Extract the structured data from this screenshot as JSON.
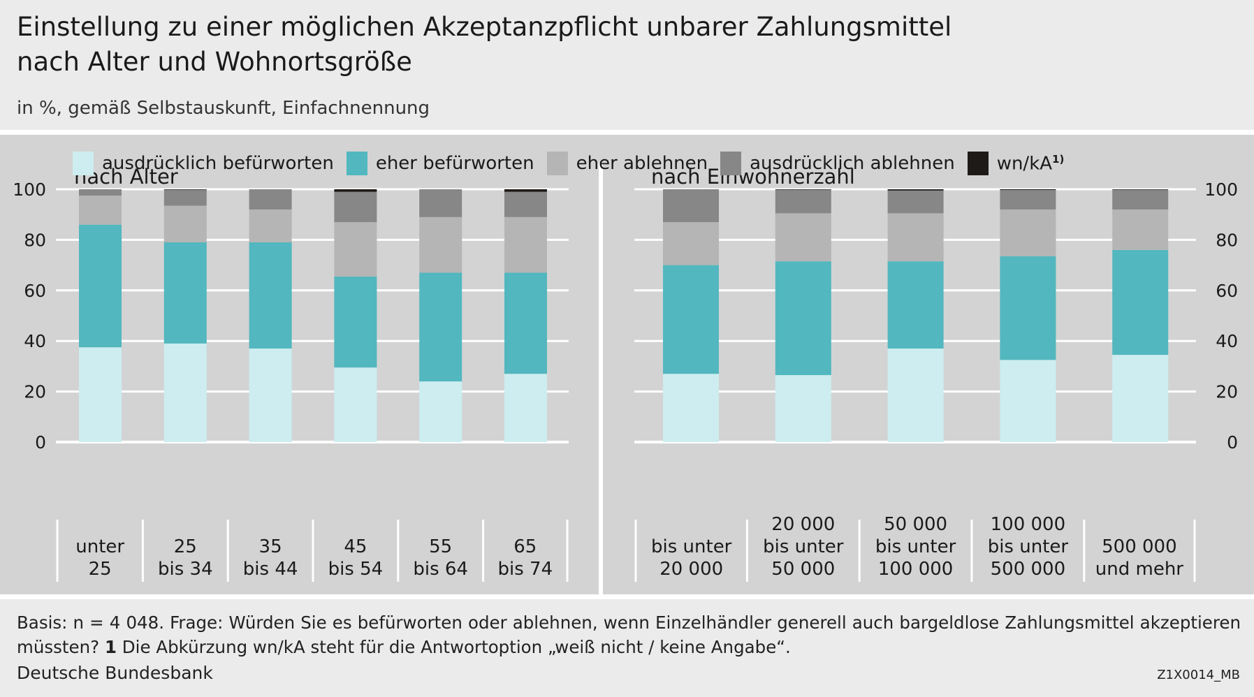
{
  "title_line1": "Einstellung zu einer möglichen Akzeptanzpflicht unbarer Zahlungsmittel",
  "title_line2": "nach Alter und Wohnortsgröße",
  "subtitle": "in %, gemäß Selbstauskunft, Einfachnennung",
  "legend": [
    {
      "label": "ausdrücklich befürworten",
      "color": "#cdedf0"
    },
    {
      "label": "eher befürworten",
      "color": "#52b7bf"
    },
    {
      "label": "eher ablehnen",
      "color": "#b5b5b5"
    },
    {
      "label": "ausdrücklich ablehnen",
      "color": "#878787"
    },
    {
      "label": "wn/kA",
      "sup": "1)",
      "color": "#1d1a18"
    }
  ],
  "chart_data": [
    {
      "type": "bar",
      "stacked": true,
      "title": "nach Alter",
      "ylim": [
        0,
        100
      ],
      "yticks": [
        0,
        20,
        40,
        60,
        80,
        100
      ],
      "categories": [
        [
          "unter",
          "25"
        ],
        [
          "25",
          "bis 34"
        ],
        [
          "35",
          "bis 44"
        ],
        [
          "45",
          "bis 54"
        ],
        [
          "55",
          "bis 64"
        ],
        [
          "65",
          "bis 74"
        ]
      ],
      "series": [
        {
          "name": "ausdrücklich befürworten",
          "values": [
            37.5,
            39,
            37,
            29.5,
            24,
            27
          ]
        },
        {
          "name": "eher befürworten",
          "values": [
            48.5,
            40,
            42,
            36,
            43,
            40
          ]
        },
        {
          "name": "eher ablehnen",
          "values": [
            11.5,
            14.5,
            13,
            21.5,
            22,
            22
          ]
        },
        {
          "name": "ausdrücklich ablehnen",
          "values": [
            2.5,
            6.3,
            8,
            12,
            11,
            10
          ]
        },
        {
          "name": "wn/kA",
          "values": [
            0,
            0.2,
            0,
            1,
            0,
            1
          ]
        }
      ]
    },
    {
      "type": "bar",
      "stacked": true,
      "title": "nach Einwohnerzahl",
      "ylim": [
        0,
        100
      ],
      "yticks": [
        0,
        20,
        40,
        60,
        80,
        100
      ],
      "categories": [
        [
          "bis unter",
          "20 000"
        ],
        [
          "20 000",
          "bis unter",
          "50 000"
        ],
        [
          "50 000",
          "bis unter",
          "100 000"
        ],
        [
          "100 000",
          "bis unter",
          "500 000"
        ],
        [
          "500 000",
          "und mehr"
        ]
      ],
      "series": [
        {
          "name": "ausdrücklich befürworten",
          "values": [
            27,
            26.5,
            37,
            32.5,
            34.5
          ]
        },
        {
          "name": "eher befürworten",
          "values": [
            43,
            45,
            34.5,
            41,
            41.5
          ]
        },
        {
          "name": "eher ablehnen",
          "values": [
            17,
            19,
            19,
            18.5,
            16
          ]
        },
        {
          "name": "ausdrücklich ablehnen",
          "values": [
            13,
            9.3,
            9,
            7.7,
            7.8
          ]
        },
        {
          "name": "wn/kA",
          "values": [
            0,
            0.2,
            0.5,
            0.3,
            0.2
          ]
        }
      ]
    }
  ],
  "footnote_pre": "Basis: n = 4 048. Frage: Würden Sie es befürworten oder ablehnen, wenn Einzelhändler generell auch bargeldlose Zahlungsmittel akzeptieren müssten?",
  "footnote_num": "1",
  "footnote_post": "Die Abkürzung wn/kA steht für die Antwortoption „weiß nicht / keine Angabe“.",
  "source": "Deutsche Bundesbank",
  "code": "Z1X0014_MB"
}
